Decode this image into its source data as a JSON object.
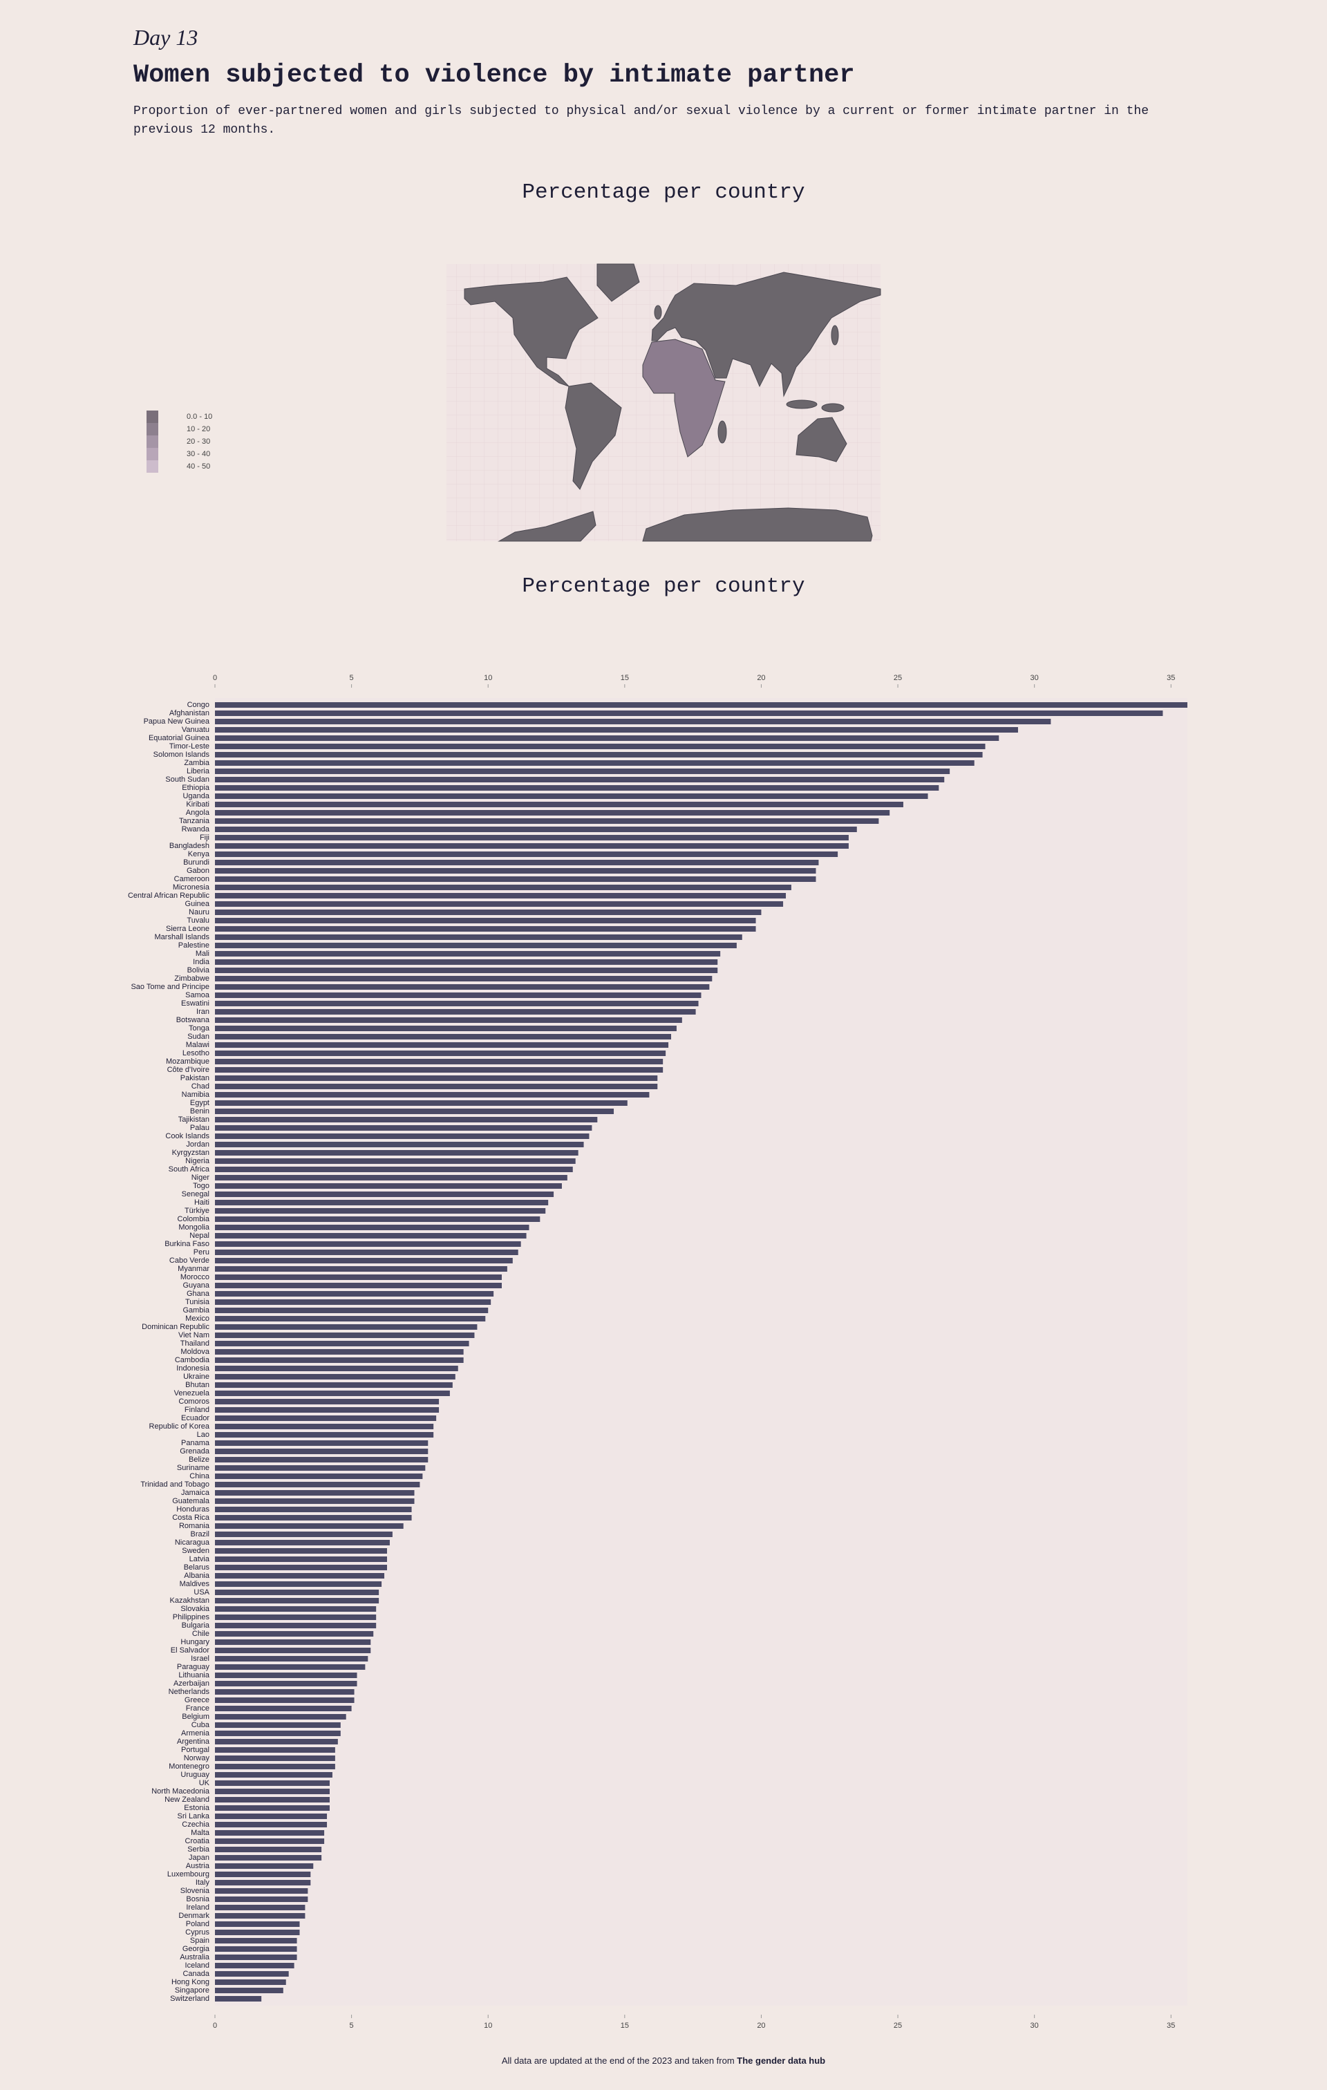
{
  "header": {
    "day": "Day 13",
    "title": "Women subjected to violence by intimate partner",
    "subtitle": "Proportion of ever-partnered women and girls subjected to physical and/or sexual violence by a current or former intimate partner in the previous 12 months."
  },
  "map": {
    "title": "Percentage per country",
    "legend": [
      {
        "label": "0.0 - 10",
        "color": "#7a6f7a"
      },
      {
        "label": "10 - 20",
        "color": "#8d808e"
      },
      {
        "label": "20 - 30",
        "color": "#a595a6"
      },
      {
        "label": "30 - 40",
        "color": "#b8a6b8"
      },
      {
        "label": "40 - 50",
        "color": "#cdbccc"
      }
    ]
  },
  "chart_data": {
    "type": "bar",
    "orientation": "horizontal",
    "title": "Percentage per country",
    "color": "#4b4a66",
    "categories": [
      "Congo",
      "Afghanistan",
      "Papua New Guinea",
      "Vanuatu",
      "Equatorial Guinea",
      "Timor-Leste",
      "Solomon Islands",
      "Zambia",
      "Liberia",
      "South Sudan",
      "Ethiopia",
      "Uganda",
      "Kiribati",
      "Angola",
      "Tanzania",
      "Rwanda",
      "Fiji",
      "Bangladesh",
      "Kenya",
      "Burundi",
      "Gabon",
      "Cameroon",
      "Micronesia",
      "Central African Republic",
      "Guinea",
      "Nauru",
      "Tuvalu",
      "Sierra Leone",
      "Marshall Islands",
      "Palestine",
      "Mali",
      "India",
      "Bolivia",
      "Zimbabwe",
      "Sao Tome and Principe",
      "Samoa",
      "Eswatini",
      "Iran",
      "Botswana",
      "Tonga",
      "Sudan",
      "Malawi",
      "Lesotho",
      "Mozambique",
      "Côte d'Ivoire",
      "Pakistan",
      "Chad",
      "Namibia",
      "Egypt",
      "Benin",
      "Tajikistan",
      "Palau",
      "Cook Islands",
      "Jordan",
      "Kyrgyzstan",
      "Nigeria",
      "South Africa",
      "Niger",
      "Togo",
      "Senegal",
      "Haiti",
      "Türkiye",
      "Colombia",
      "Mongolia",
      "Nepal",
      "Burkina Faso",
      "Peru",
      "Cabo Verde",
      "Myanmar",
      "Morocco",
      "Guyana",
      "Ghana",
      "Tunisia",
      "Gambia",
      "Mexico",
      "Dominican Republic",
      "Viet Nam",
      "Thailand",
      "Moldova",
      "Cambodia",
      "Indonesia",
      "Ukraine",
      "Bhutan",
      "Venezuela",
      "Comoros",
      "Finland",
      "Ecuador",
      "Republic of Korea",
      "Lao",
      "Panama",
      "Grenada",
      "Belize",
      "Suriname",
      "China",
      "Trinidad and Tobago",
      "Jamaica",
      "Guatemala",
      "Honduras",
      "Costa Rica",
      "Romania",
      "Brazil",
      "Nicaragua",
      "Sweden",
      "Latvia",
      "Belarus",
      "Albania",
      "Maldives",
      "USA",
      "Kazakhstan",
      "Slovakia",
      "Philippines",
      "Bulgaria",
      "Chile",
      "Hungary",
      "El Salvador",
      "Israel",
      "Paraguay",
      "Lithuania",
      "Azerbaijan",
      "Netherlands",
      "Greece",
      "France",
      "Belgium",
      "Cuba",
      "Armenia",
      "Argentina",
      "Portugal",
      "Norway",
      "Montenegro",
      "Uruguay",
      "UK",
      "North Macedonia",
      "New Zealand",
      "Estonia",
      "Sri Lanka",
      "Czechia",
      "Malta",
      "Croatia",
      "Serbia",
      "Japan",
      "Austria",
      "Luxembourg",
      "Italy",
      "Slovenia",
      "Bosnia",
      "Ireland",
      "Denmark",
      "Poland",
      "Cyprus",
      "Spain",
      "Georgia",
      "Australia",
      "Iceland",
      "Canada",
      "Hong Kong",
      "Singapore",
      "Switzerland"
    ],
    "values": [
      35.6,
      34.7,
      30.6,
      29.4,
      28.7,
      28.2,
      28.1,
      27.8,
      26.9,
      26.7,
      26.5,
      26.1,
      25.2,
      24.7,
      24.3,
      23.5,
      23.2,
      23.2,
      22.8,
      22.1,
      22.0,
      22.0,
      21.1,
      20.9,
      20.8,
      20.0,
      19.8,
      19.8,
      19.3,
      19.1,
      18.5,
      18.4,
      18.4,
      18.2,
      18.1,
      17.8,
      17.7,
      17.6,
      17.1,
      16.9,
      16.7,
      16.6,
      16.5,
      16.4,
      16.4,
      16.2,
      16.2,
      15.9,
      15.1,
      14.6,
      14.0,
      13.8,
      13.7,
      13.5,
      13.3,
      13.2,
      13.1,
      12.9,
      12.7,
      12.4,
      12.2,
      12.1,
      11.9,
      11.5,
      11.4,
      11.2,
      11.1,
      10.9,
      10.7,
      10.5,
      10.5,
      10.2,
      10.1,
      10.0,
      9.9,
      9.6,
      9.5,
      9.3,
      9.1,
      9.1,
      8.9,
      8.8,
      8.7,
      8.6,
      8.2,
      8.2,
      8.1,
      8.0,
      8.0,
      7.8,
      7.8,
      7.8,
      7.7,
      7.6,
      7.5,
      7.3,
      7.3,
      7.2,
      7.2,
      6.9,
      6.5,
      6.4,
      6.3,
      6.3,
      6.3,
      6.2,
      6.1,
      6.0,
      6.0,
      5.9,
      5.9,
      5.9,
      5.8,
      5.7,
      5.7,
      5.6,
      5.5,
      5.2,
      5.2,
      5.1,
      5.1,
      5.0,
      4.8,
      4.6,
      4.6,
      4.5,
      4.4,
      4.4,
      4.4,
      4.3,
      4.2,
      4.2,
      4.2,
      4.2,
      4.1,
      4.1,
      4.0,
      4.0,
      3.9,
      3.9,
      3.6,
      3.5,
      3.5,
      3.4,
      3.4,
      3.3,
      3.3,
      3.1,
      3.1,
      3.0,
      3.0,
      3.0,
      2.9,
      2.7,
      2.6,
      2.5,
      1.7
    ],
    "xlim": [
      0,
      35.6
    ],
    "xticks": [
      0,
      5,
      10,
      15,
      20,
      25,
      30,
      35
    ]
  },
  "footer": {
    "text": "All data are updated at the end of the 2023 and taken from ",
    "source": "The gender data hub"
  }
}
